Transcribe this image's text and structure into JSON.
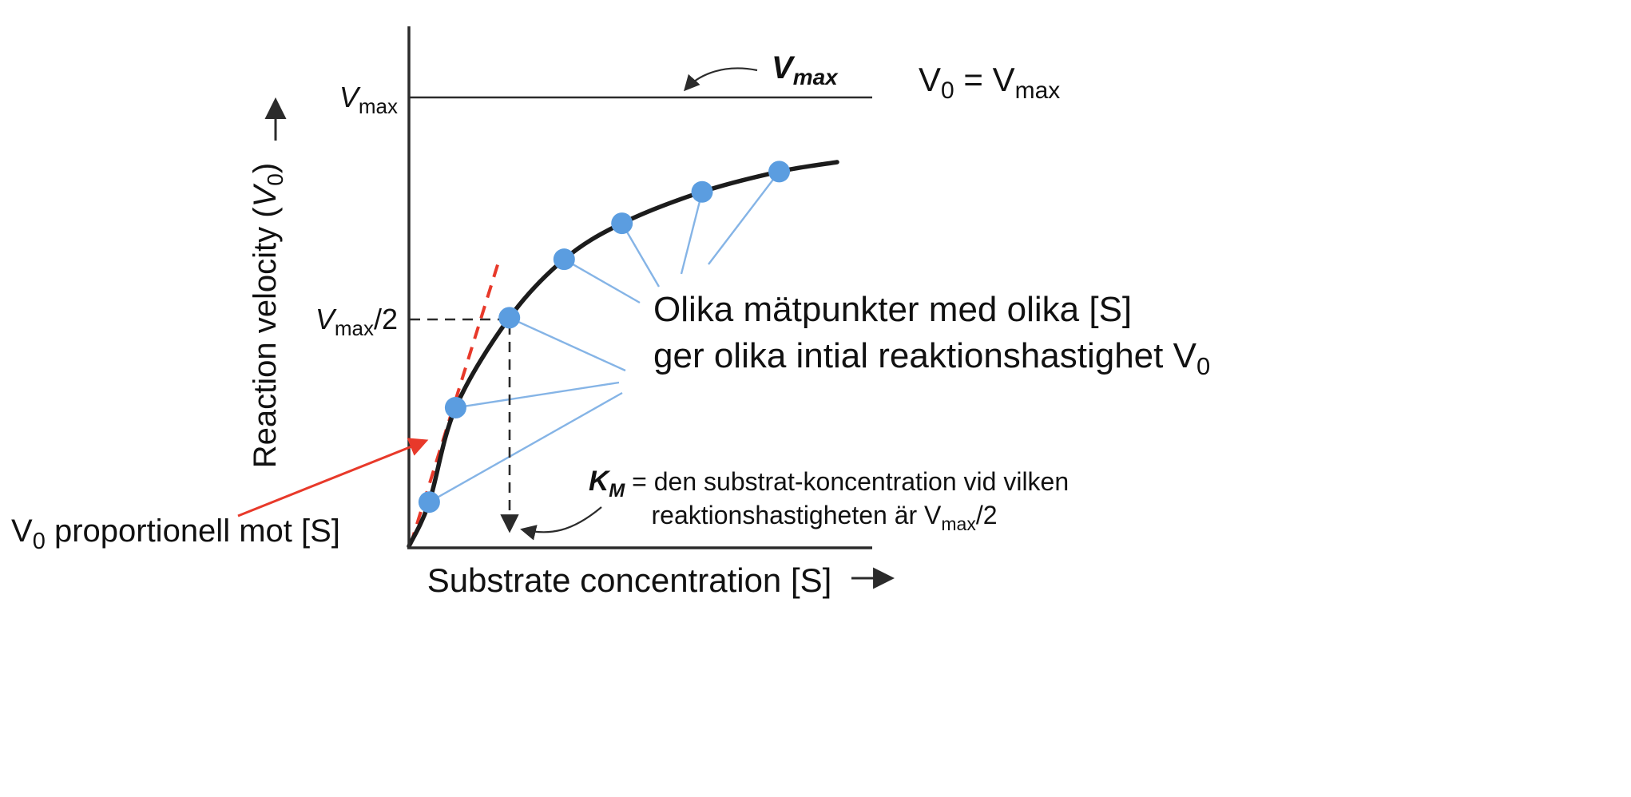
{
  "colors": {
    "curve": "#1c1c1c",
    "axis": "#2b2b2b",
    "point_fill": "#5b9de0",
    "connector": "#85b4e6",
    "annotation_blue": "#4a90e2",
    "vmax_callout_blue": "#29a3dc",
    "red": "#e8392a",
    "text": "#111111"
  },
  "chart_data": {
    "type": "line",
    "xlabel": "Substrate concentration [S]",
    "ylabel": "Reaction velocity (V0)",
    "y_ticks": [
      "Vmax",
      "Vmax/2"
    ],
    "grid": false,
    "asymptote_y": "Vmax",
    "curve": "Michaelis-Menten saturation: V0 = Vmax*[S]/(KM+[S])",
    "points_S_over_KM": [
      0.2,
      0.46,
      0.99,
      1.53,
      2.1,
      2.89,
      3.65
    ],
    "points_V0_over_Vmax": [
      0.1,
      0.31,
      0.51,
      0.64,
      0.72,
      0.79,
      0.835
    ],
    "half_vmax_marker": {
      "x_over_KM": 1.0,
      "y_over_Vmax": 0.5
    },
    "xlim_over_KM": [
      0,
      4.4
    ],
    "ylim_over_Vmax": [
      0,
      1.15
    ]
  },
  "text": {
    "y_axis_pre": "Reaction velocity (",
    "y_axis_v": "V",
    "y_axis_sub": "0",
    "y_axis_post": ")",
    "x_axis_label": "Substrate concentration [S]",
    "vmax_tick_v": "V",
    "vmax_tick_sub": "max",
    "vmax_half_v": "V",
    "vmax_half_sub": "max",
    "vmax_half_post": "/2",
    "vmax_callout_v": "V",
    "vmax_callout_sub": "max",
    "v0_eq_v": "V",
    "v0_eq_sub": "0",
    "v0_eq_mid": " = V",
    "v0_eq_sub2": "max",
    "olika_line1": "Olika mätpunkter med olika [S]",
    "olika_line2_pre": "ger olika intial reaktionshastighet V",
    "olika_line2_sub": "0",
    "km_k": "K",
    "km_m": "M",
    "km_rest": " = den substrat-koncentration vid vilken",
    "km2_pre": "reaktionshastigheten är V",
    "km2_sub": "max",
    "km2_post": "/2",
    "vprop_v": "V",
    "vprop_sub": "0",
    "vprop_rest": " proportionell mot [S]"
  }
}
